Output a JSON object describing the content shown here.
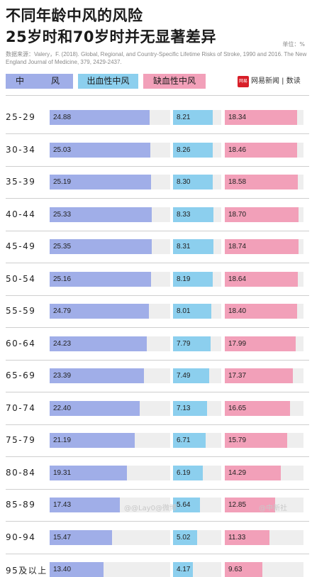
{
  "header": {
    "title_line1": "不同年龄中风的风险",
    "title_line2": "25岁时和70岁时并无显著差异",
    "unit": "单位：%",
    "source": "数据来源：Valery，F. (2018). Global, Regional, and Country-Specific Lifetime Risks of Stroke, 1990 and 2016. The New England Journal of Medicine, 379, 2429-2437."
  },
  "legend": {
    "stroke_a": "中",
    "stroke_b": "风",
    "hemorrhagic": "出血性中风",
    "ischemic": "缺血性中风"
  },
  "brand": {
    "logo_text": "网易",
    "name": "网易新闻 | 数读"
  },
  "watermarks": {
    "left": "@@Lay0@微博",
    "right": "@中新社"
  },
  "colors": {
    "stroke": "#a0aee8",
    "hemorrhagic": "#8ccfee",
    "ischemic": "#f2a0b9",
    "track": "#eeeeee"
  },
  "chart_data": {
    "type": "bar",
    "orientation": "horizontal",
    "categories": [
      "25-29",
      "30-34",
      "35-39",
      "40-44",
      "45-49",
      "50-54",
      "55-59",
      "60-64",
      "65-69",
      "70-74",
      "75-79",
      "80-84",
      "85-89",
      "90-94",
      "95及以上"
    ],
    "series": [
      {
        "name": "中风",
        "color": "#a0aee8",
        "max": 30,
        "values": [
          24.88,
          25.03,
          25.19,
          25.33,
          25.35,
          25.16,
          24.79,
          24.23,
          23.39,
          22.4,
          21.19,
          19.31,
          17.43,
          15.47,
          13.4
        ]
      },
      {
        "name": "出血性中风",
        "color": "#8ccfee",
        "max": 10,
        "values": [
          8.21,
          8.26,
          8.3,
          8.33,
          8.31,
          8.19,
          8.01,
          7.79,
          7.49,
          7.13,
          6.71,
          6.19,
          5.64,
          5.02,
          4.17
        ]
      },
      {
        "name": "缺血性中风",
        "color": "#f2a0b9",
        "max": 20,
        "values": [
          18.34,
          18.46,
          18.58,
          18.7,
          18.74,
          18.64,
          18.4,
          17.99,
          17.37,
          16.65,
          15.79,
          14.29,
          12.85,
          11.33,
          9.63
        ]
      }
    ]
  }
}
